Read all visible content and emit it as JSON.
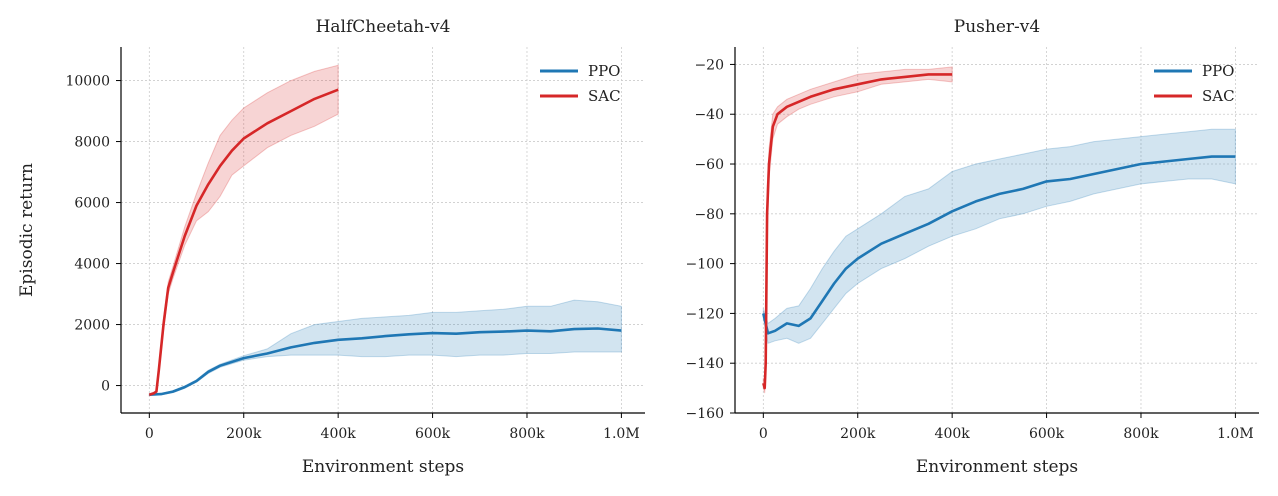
{
  "chart_data": [
    {
      "type": "line",
      "title": "HalfCheetah-v4",
      "xlabel": "Environment steps",
      "ylabel": "Episodic return",
      "xlim": [
        -60000,
        1050000
      ],
      "ylim": [
        -900,
        11100
      ],
      "xticks": [
        {
          "value": 0,
          "label": "0"
        },
        {
          "value": 200000,
          "label": "200k"
        },
        {
          "value": 400000,
          "label": "400k"
        },
        {
          "value": 600000,
          "label": "600k"
        },
        {
          "value": 800000,
          "label": "800k"
        },
        {
          "value": 1000000,
          "label": "1.0M"
        }
      ],
      "yticks": [
        {
          "value": 0,
          "label": "0"
        },
        {
          "value": 2000,
          "label": "2000"
        },
        {
          "value": 4000,
          "label": "4000"
        },
        {
          "value": 6000,
          "label": "6000"
        },
        {
          "value": 8000,
          "label": "8000"
        },
        {
          "value": 10000,
          "label": "10000"
        }
      ],
      "grid": true,
      "legend_position": "top-right",
      "series": [
        {
          "name": "PPO",
          "color": "#1f77b4",
          "band_color": "#1f77b4",
          "x": [
            0,
            25000,
            50000,
            75000,
            100000,
            125000,
            150000,
            200000,
            250000,
            300000,
            350000,
            400000,
            450000,
            500000,
            550000,
            600000,
            650000,
            700000,
            750000,
            800000,
            850000,
            900000,
            950000,
            1000000
          ],
          "mean": [
            -300,
            -280,
            -200,
            -50,
            150,
            450,
            650,
            900,
            1050,
            1250,
            1400,
            1500,
            1550,
            1620,
            1680,
            1720,
            1700,
            1750,
            1770,
            1800,
            1780,
            1850,
            1870,
            1800
          ],
          "lower": [
            -320,
            -300,
            -230,
            -90,
            110,
            400,
            600,
            830,
            950,
            1000,
            1000,
            1000,
            950,
            950,
            1000,
            1000,
            950,
            1000,
            1000,
            1050,
            1050,
            1100,
            1100,
            1100
          ],
          "upper": [
            -280,
            -260,
            -170,
            -10,
            190,
            500,
            700,
            980,
            1200,
            1700,
            2000,
            2100,
            2200,
            2250,
            2300,
            2400,
            2400,
            2450,
            2500,
            2600,
            2600,
            2800,
            2750,
            2600
          ]
        },
        {
          "name": "SAC",
          "color": "#d62728",
          "band_color": "#d62728",
          "x": [
            0,
            10000,
            15000,
            20000,
            30000,
            40000,
            50000,
            75000,
            100000,
            125000,
            150000,
            175000,
            200000,
            250000,
            300000,
            350000,
            400000
          ],
          "mean": [
            -300,
            -250,
            -200,
            500,
            2000,
            3200,
            3700,
            4900,
            5900,
            6600,
            7200,
            7700,
            8100,
            8600,
            9000,
            9400,
            9700
          ],
          "lower": [
            -330,
            -290,
            -240,
            400,
            1800,
            3000,
            3500,
            4600,
            5400,
            5700,
            6200,
            6900,
            7200,
            7800,
            8200,
            8500,
            8900
          ],
          "upper": [
            -270,
            -210,
            -160,
            600,
            2200,
            3400,
            3900,
            5200,
            6300,
            7300,
            8200,
            8700,
            9100,
            9600,
            10000,
            10300,
            10500
          ]
        }
      ]
    },
    {
      "type": "line",
      "title": "Pusher-v4",
      "xlabel": "Environment steps",
      "ylabel": "",
      "xlim": [
        -60000,
        1050000
      ],
      "ylim": [
        -160,
        -13
      ],
      "xticks": [
        {
          "value": 0,
          "label": "0"
        },
        {
          "value": 200000,
          "label": "200k"
        },
        {
          "value": 400000,
          "label": "400k"
        },
        {
          "value": 600000,
          "label": "600k"
        },
        {
          "value": 800000,
          "label": "800k"
        },
        {
          "value": 1000000,
          "label": "1.0M"
        }
      ],
      "yticks": [
        {
          "value": -160,
          "label": "−160"
        },
        {
          "value": -140,
          "label": "−140"
        },
        {
          "value": -120,
          "label": "−120"
        },
        {
          "value": -100,
          "label": "−100"
        },
        {
          "value": -80,
          "label": "−80"
        },
        {
          "value": -60,
          "label": "−60"
        },
        {
          "value": -40,
          "label": "−40"
        },
        {
          "value": -20,
          "label": "−20"
        }
      ],
      "grid": true,
      "legend_position": "top-right",
      "series": [
        {
          "name": "PPO",
          "color": "#1f77b4",
          "band_color": "#1f77b4",
          "x": [
            0,
            10000,
            25000,
            50000,
            75000,
            100000,
            125000,
            150000,
            175000,
            200000,
            250000,
            300000,
            350000,
            400000,
            450000,
            500000,
            550000,
            600000,
            650000,
            700000,
            750000,
            800000,
            850000,
            900000,
            950000,
            1000000
          ],
          "mean": [
            -120,
            -128,
            -127,
            -124,
            -125,
            -122,
            -115,
            -108,
            -102,
            -98,
            -92,
            -88,
            -84,
            -79,
            -75,
            -72,
            -70,
            -67,
            -66,
            -64,
            -62,
            -60,
            -59,
            -58,
            -57,
            -57
          ],
          "lower": [
            -122,
            -132,
            -131,
            -130,
            -132,
            -130,
            -124,
            -118,
            -112,
            -108,
            -102,
            -98,
            -93,
            -89,
            -86,
            -82,
            -80,
            -77,
            -75,
            -72,
            -70,
            -68,
            -67,
            -66,
            -66,
            -68
          ],
          "upper": [
            -118,
            -124,
            -122,
            -118,
            -117,
            -110,
            -102,
            -95,
            -89,
            -86,
            -80,
            -73,
            -70,
            -63,
            -60,
            -58,
            -56,
            -54,
            -53,
            -51,
            -50,
            -49,
            -48,
            -47,
            -46,
            -46
          ]
        },
        {
          "name": "SAC",
          "color": "#d62728",
          "band_color": "#d62728",
          "x": [
            0,
            3000,
            5000,
            8000,
            12000,
            20000,
            30000,
            50000,
            75000,
            100000,
            150000,
            200000,
            250000,
            300000,
            350000,
            400000
          ],
          "mean": [
            -148,
            -150,
            -140,
            -80,
            -60,
            -45,
            -40,
            -37,
            -35,
            -33,
            -30,
            -28,
            -26,
            -25,
            -24,
            -24
          ],
          "lower": [
            -150,
            -152,
            -145,
            -90,
            -66,
            -50,
            -44,
            -41,
            -38,
            -36,
            -33,
            -31,
            -28,
            -27,
            -26,
            -27
          ],
          "upper": [
            -146,
            -148,
            -135,
            -70,
            -54,
            -40,
            -37,
            -34,
            -32,
            -30,
            -27,
            -24,
            -23,
            -22,
            -22,
            -21
          ]
        }
      ]
    }
  ]
}
